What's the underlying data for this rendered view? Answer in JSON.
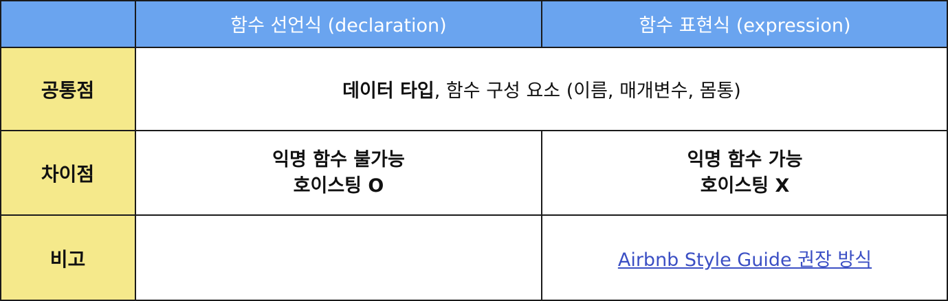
{
  "header": {
    "col1": "",
    "col2": "함수 선언식 (declaration)",
    "col3": "함수 표현식 (expression)"
  },
  "rows": {
    "common": {
      "label": "공통점",
      "bold_text": "데이터 타입",
      "rest_text": ", 함수 구성 요소 (이름, 매개변수, 몸통)"
    },
    "difference": {
      "label": "차이점",
      "declaration_line1": "익명 함수 불가능",
      "declaration_line2": "호이스팅 O",
      "expression_line1": "익명 함수 가능",
      "expression_line2": "호이스팅 X"
    },
    "note": {
      "label": "비고",
      "declaration": "",
      "expression_link": "Airbnb Style Guide 권장 방식"
    }
  },
  "colors": {
    "header_bg": "#6aa4ef",
    "side_bg": "#f5e98b",
    "link": "#3b4fc4",
    "border": "#1a1a1a"
  }
}
